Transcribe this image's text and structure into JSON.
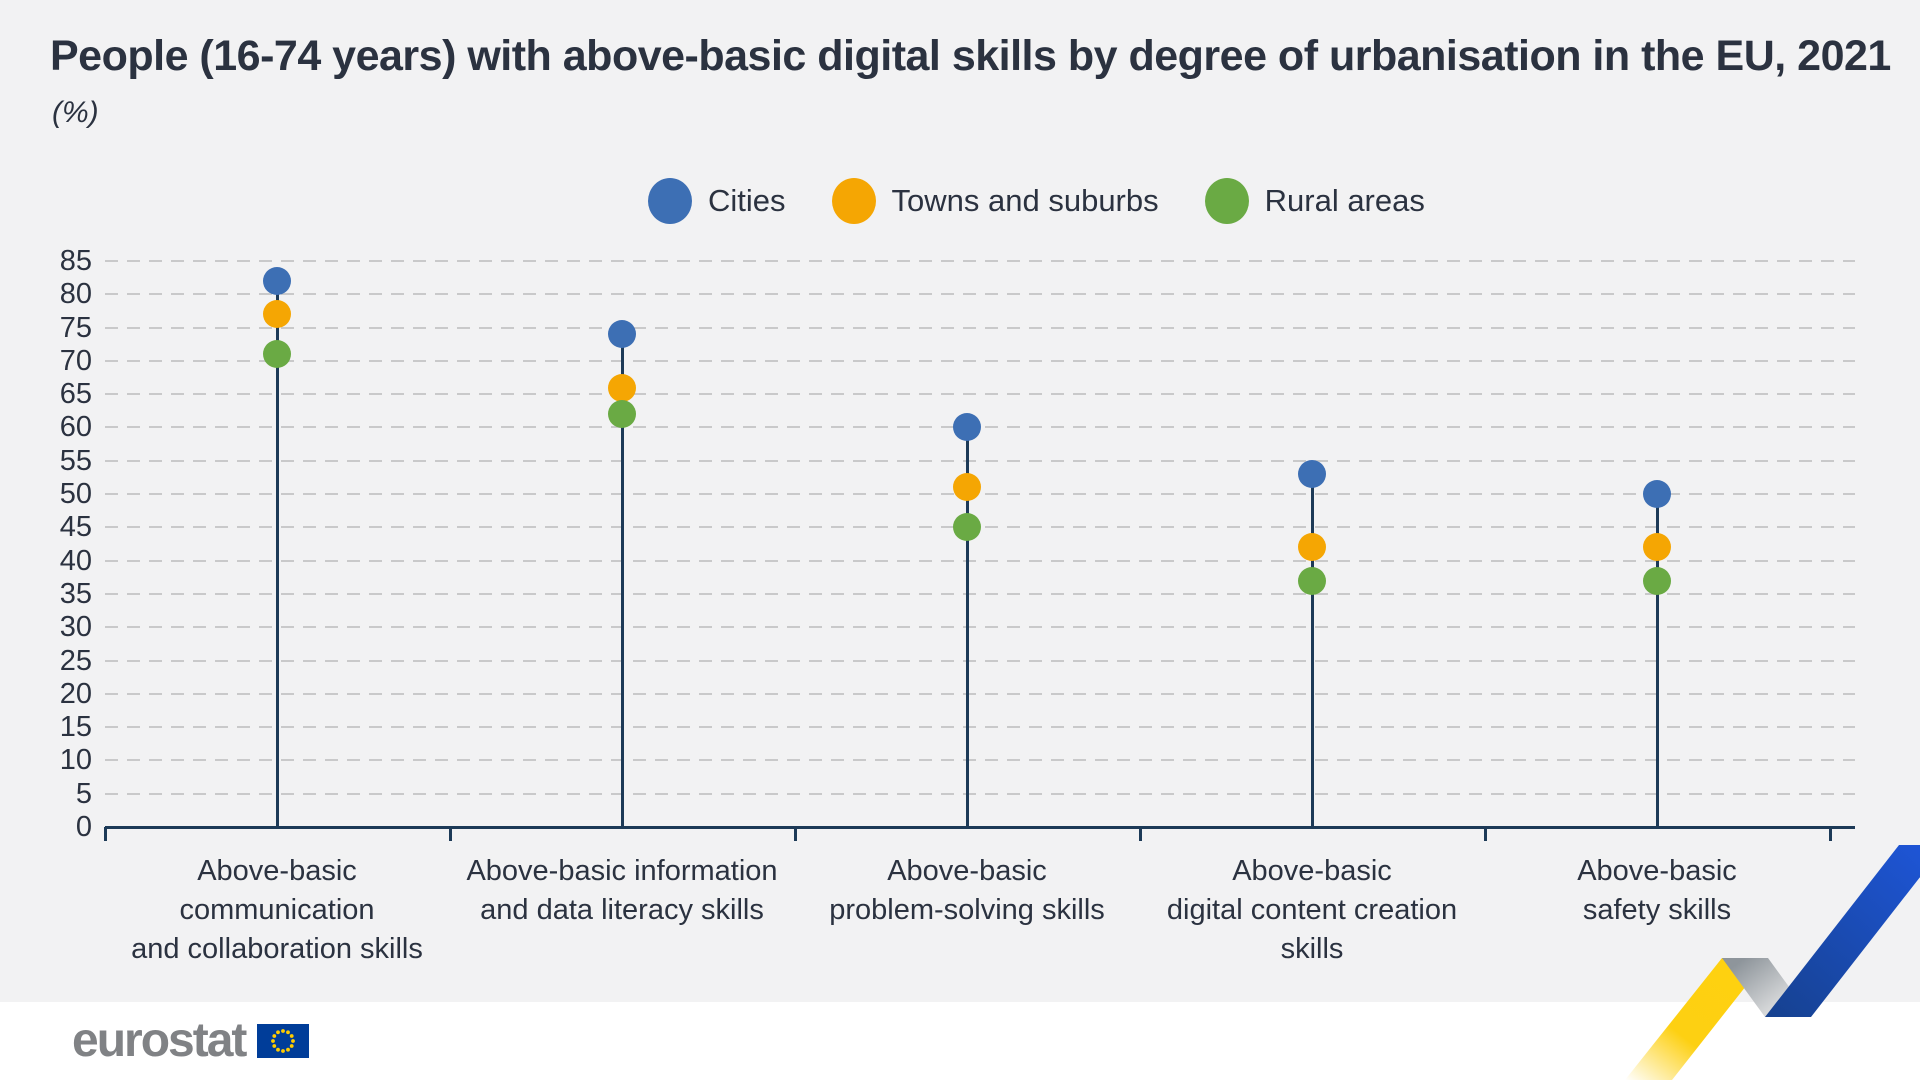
{
  "header": {
    "title": "People (16-74 years) with above-basic digital skills by degree of urbanisation in the EU, 2021",
    "subtitle": "(%)"
  },
  "chart_data": {
    "type": "lollipop",
    "title": "People (16-74 years) with above-basic digital skills by degree of urbanisation in the EU, 2021",
    "unit": "%",
    "categories": [
      "Above-basic communication and collaboration skills",
      "Above-basic information and data literacy skills",
      "Above-basic problem-solving skills",
      "Above-basic digital content creation skills",
      "Above-basic safety skills"
    ],
    "category_lines": [
      [
        "Above-basic communication",
        "and collaboration skills"
      ],
      [
        "Above-basic information",
        "and data literacy skills"
      ],
      [
        "Above-basic",
        "problem-solving skills"
      ],
      [
        "Above-basic",
        "digital content creation skills"
      ],
      [
        "Above-basic",
        "safety skills"
      ]
    ],
    "series": [
      {
        "name": "Cities",
        "color": "#3d6fb4",
        "values": [
          82,
          74,
          60,
          53,
          50
        ]
      },
      {
        "name": "Towns and suburbs",
        "color": "#f5a603",
        "values": [
          77,
          66,
          51,
          42,
          42
        ]
      },
      {
        "name": "Rural areas",
        "color": "#6aaa44",
        "values": [
          71,
          62,
          45,
          37,
          37
        ]
      }
    ],
    "ylim": [
      0,
      85
    ],
    "ytick_step": 5,
    "grid": "dashed horizontal",
    "legend_position": "top-center"
  },
  "footer": {
    "brand": "eurostat"
  },
  "theme": {
    "background": "#f2f2f3",
    "text": "#2b3240",
    "axis": "#1d3a57",
    "gridline": "#c9c9ca",
    "footer_background": "#ffffff",
    "eurostat_gray": "#808285",
    "flag_blue": "#003d99",
    "star_yellow": "#ffcc00",
    "ribbon_yellow": "#fed110",
    "ribbon_gray": "#8e959b",
    "ribbon_blue": "#1c4ec9"
  }
}
